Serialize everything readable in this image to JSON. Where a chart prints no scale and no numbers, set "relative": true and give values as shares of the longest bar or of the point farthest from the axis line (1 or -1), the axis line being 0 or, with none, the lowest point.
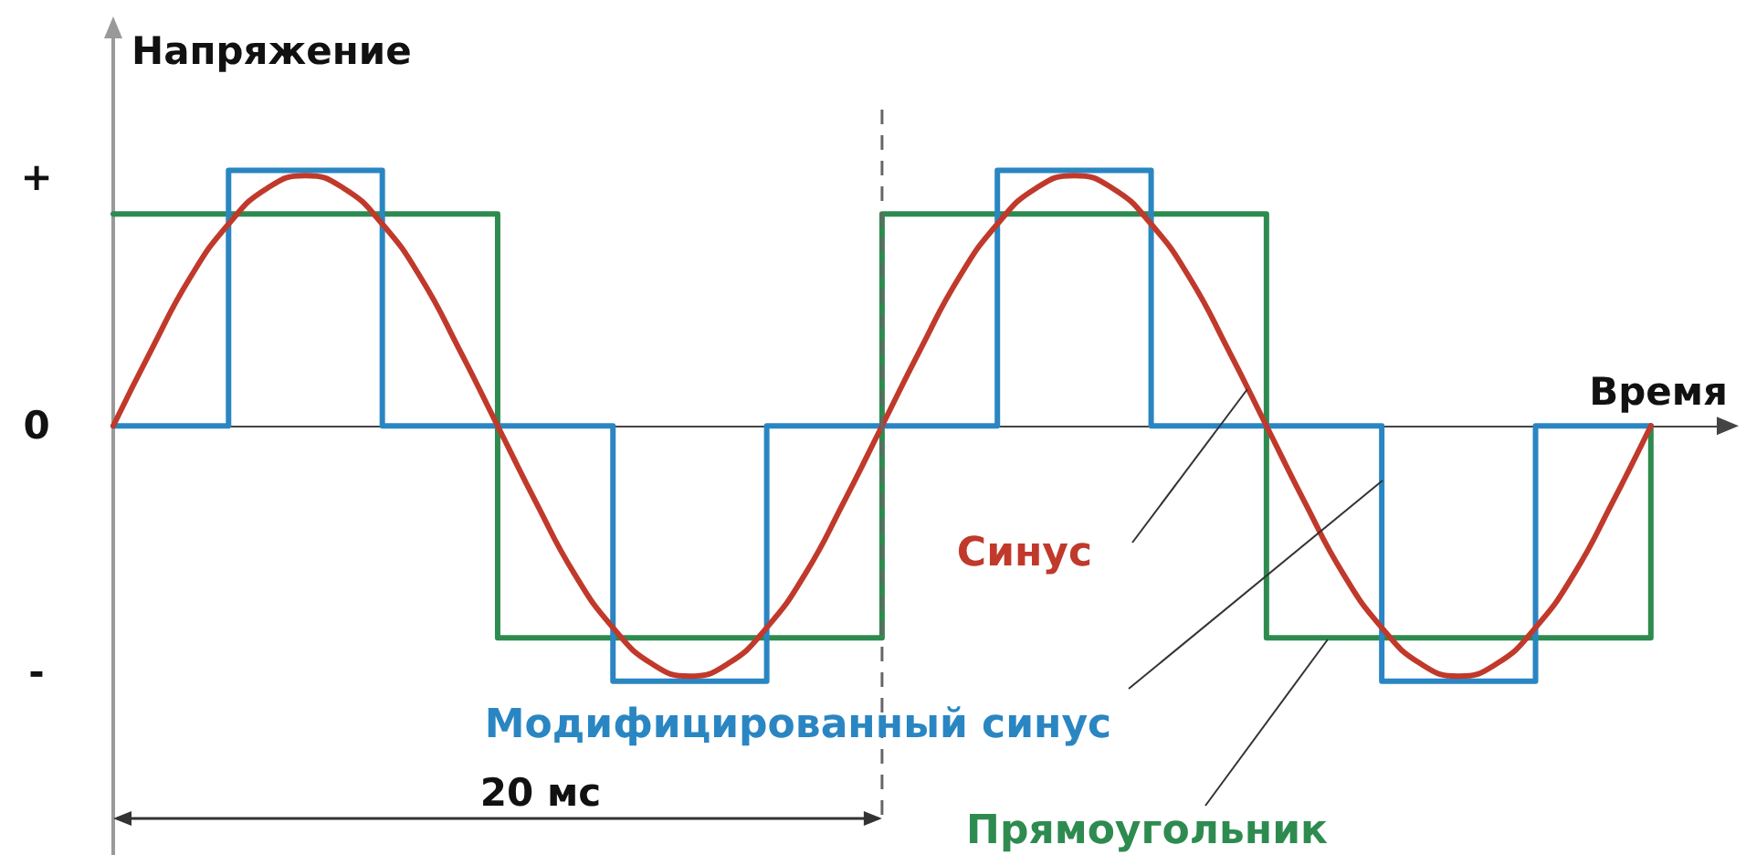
{
  "chart_data": {
    "type": "line",
    "xlabel": "Время",
    "ylabel": "Напряжение",
    "relative": true,
    "marker": "none",
    "categories": [
      null,
      null,
      null,
      null,
      null,
      null,
      null,
      null,
      null,
      null,
      null,
      null,
      null,
      null,
      null,
      null,
      null,
      null,
      null,
      null,
      null,
      null,
      null,
      null,
      null,
      null,
      null,
      null,
      null,
      null,
      null,
      null,
      null,
      null,
      null,
      null,
      null,
      null,
      null,
      null,
      null,
      null,
      null
    ],
    "series": [
      {
        "name": "Синус",
        "color": "#c0392b",
        "values": [
          0,
          0.3,
          0.58,
          0.79,
          0.93,
          0.98,
          0.93,
          0.79,
          0.58,
          0.3,
          0,
          -0.3,
          -0.58,
          -0.79,
          -0.93,
          -0.98,
          -0.93,
          -0.79,
          -0.58,
          -0.3,
          0,
          0.3,
          0.58,
          0.79,
          0.93,
          0.98,
          0.93,
          0.79,
          0.58,
          0.3,
          0,
          -0.3,
          -0.58,
          -0.79,
          -0.93,
          -0.98,
          -0.93,
          -0.79,
          -0.58,
          -0.3,
          0,
          null,
          null
        ]
      },
      {
        "name": "Модифицированный синус",
        "type": "step",
        "color": "#2a86c2",
        "values": [
          0,
          0,
          0,
          1,
          1,
          1,
          1,
          0,
          0,
          0,
          0,
          0,
          0,
          -1,
          -1,
          -1,
          -1,
          0,
          0,
          0,
          0,
          0,
          0,
          1,
          1,
          1,
          1,
          0,
          0,
          0,
          0,
          0,
          0,
          -1,
          -1,
          -1,
          -1,
          0,
          0,
          0,
          0,
          null,
          null
        ]
      },
      {
        "name": "Прямоугольник",
        "type": "step",
        "color": "#2e8b50",
        "values": [
          0.83,
          0.83,
          0.83,
          0.83,
          0.83,
          0.83,
          0.83,
          0.83,
          0.83,
          0.83,
          -0.83,
          -0.83,
          -0.83,
          -0.83,
          -0.83,
          -0.83,
          -0.83,
          -0.83,
          -0.83,
          -0.83,
          0.83,
          0.83,
          0.83,
          0.83,
          0.83,
          0.83,
          0.83,
          0.83,
          0.83,
          0.83,
          -0.83,
          -0.83,
          -0.83,
          -0.83,
          -0.83,
          -0.83,
          -0.83,
          -0.83,
          -0.83,
          -0.83,
          0,
          null,
          null
        ]
      }
    ],
    "annotations": [
      "+",
      "0",
      "-",
      "20 мс"
    ]
  }
}
